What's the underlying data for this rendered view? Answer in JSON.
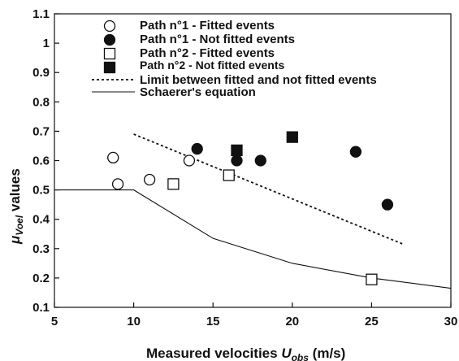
{
  "chart_data": {
    "type": "scatter",
    "xlabel_main": "Measured velocities ",
    "xlabel_var": "U",
    "xlabel_sub": "obs",
    "xlabel_unit": " (m/s)",
    "ylabel_var": "μ",
    "ylabel_sub": "Voel",
    "ylabel_main": " values",
    "xlim": [
      5,
      30
    ],
    "ylim": [
      0.1,
      1.1
    ],
    "xticks": [
      5,
      10,
      15,
      20,
      25,
      30
    ],
    "xtick_labels": [
      "5",
      "10",
      "15",
      "20",
      "25",
      "30"
    ],
    "yticks": [
      0.1,
      0.2,
      0.3,
      0.4,
      0.5,
      0.6,
      0.7,
      0.8,
      0.9,
      1.0,
      1.1
    ],
    "ytick_labels": [
      "0.1",
      "0.2",
      "0.3",
      "0.4",
      "0.5",
      "0.6",
      "0.7",
      "0.8",
      "0.9",
      "1",
      "1.1"
    ],
    "grid": false,
    "legend_position": "top-center",
    "series": [
      {
        "name": "Path  n°1 - Fitted events",
        "marker": "circle-open",
        "points": [
          [
            8.7,
            0.61
          ],
          [
            9.0,
            0.52
          ],
          [
            11.0,
            0.535
          ],
          [
            13.5,
            0.6
          ]
        ]
      },
      {
        "name": "Path  n°1 - Not fitted events",
        "marker": "circle-filled",
        "points": [
          [
            14.0,
            0.64
          ],
          [
            16.5,
            0.6
          ],
          [
            18.0,
            0.6
          ],
          [
            24.0,
            0.63
          ],
          [
            26.0,
            0.45
          ]
        ]
      },
      {
        "name": "Path  n°2 - Fitted events",
        "marker": "square-open",
        "points": [
          [
            12.5,
            0.52
          ],
          [
            16.0,
            0.55
          ],
          [
            25.0,
            0.195
          ]
        ]
      },
      {
        "name": "Path  n°2 - Not fitted events",
        "marker": "square-filled",
        "points": [
          [
            16.5,
            0.635
          ],
          [
            20.0,
            0.68
          ]
        ]
      }
    ],
    "lines": [
      {
        "name": "Limit between fitted and not fitted events",
        "style": "dotted",
        "points": [
          [
            10.0,
            0.69
          ],
          [
            27.0,
            0.315
          ]
        ]
      },
      {
        "name": "Schaerer's  equation",
        "style": "solid",
        "points": [
          [
            5.0,
            0.5
          ],
          [
            10.0,
            0.5
          ],
          [
            15.0,
            0.335
          ],
          [
            20.0,
            0.25
          ],
          [
            25.0,
            0.2
          ],
          [
            30.0,
            0.165
          ]
        ]
      }
    ]
  }
}
